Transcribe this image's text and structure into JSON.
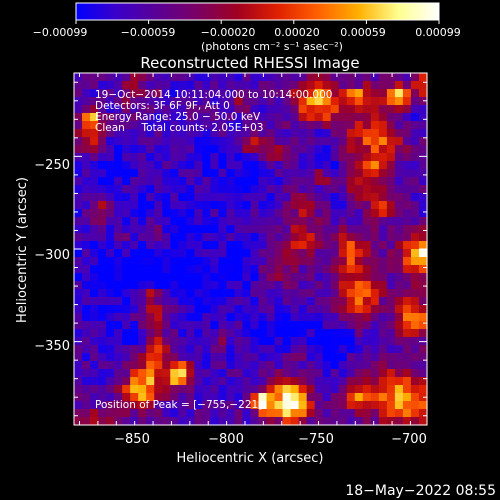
{
  "chart_data": {
    "type": "heatmap",
    "title": "Reconstructed RHESSI Image",
    "xlabel": "Heliocentric X (arcsec)",
    "ylabel": "Heliocentric Y (arcsec)",
    "xlim": [
      -878,
      -686
    ],
    "ylim": [
      -395,
      -205
    ],
    "x_ticks": [
      -850,
      -800,
      -750,
      -700
    ],
    "x_tick_labels": [
      "−850",
      "−800",
      "−750",
      "−700"
    ],
    "y_ticks": [
      -250,
      -300,
      -350
    ],
    "y_tick_labels": [
      "−250",
      "−300",
      "−350"
    ],
    "colorbar": {
      "range": [
        -0.00099,
        0.00099
      ],
      "tick_labels": [
        "−0.00099",
        "−0.00059",
        "−0.00020",
        "0.00020",
        "0.00059",
        "0.00099"
      ],
      "unit": "(photons cm⁻² s⁻¹ asec⁻²)",
      "colormap": [
        "#0000ff",
        "#3a00c8",
        "#5a0096",
        "#7a0064",
        "#a00020",
        "#e02000",
        "#ff6000",
        "#ffb000",
        "#ffff90",
        "#ffffff"
      ]
    },
    "annotations": [
      "19−Oct−2014 10:11:04.000 to 10:14:00.000",
      "Detectors: 3F 6F 9F, Att 0",
      "Energy Range: 25.0 − 50.0 keV",
      "Clean     Total counts: 2.05E+03"
    ],
    "peak_label": "Position of Peak = [−755,−221]",
    "peak": [
      -755,
      -221
    ],
    "grid_size": [
      44,
      44
    ]
  },
  "footer_timestamp": "18−May−2022 08:55"
}
